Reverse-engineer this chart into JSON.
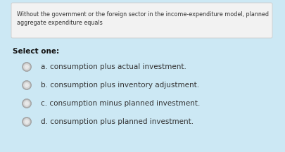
{
  "background_color": "#cce8f4",
  "question_box_bg": "#f2f2f2",
  "question_box_border": "#cccccc",
  "question_text_line1": "Without the government or the foreign sector in the income-expenditure model, planned",
  "question_text_line2": "aggregate expenditure equals",
  "question_fontsize": 5.8,
  "question_text_color": "#333333",
  "select_one_text": "Select one:",
  "select_one_fontsize": 7.5,
  "options": [
    "a. consumption plus actual investment.",
    "b. consumption plus inventory adjustment.",
    "c. consumption minus planned investment.",
    "d. consumption plus planned investment."
  ],
  "option_fontsize": 7.5,
  "option_text_color": "#333333",
  "radio_outer_color": "#b0b0b0",
  "radio_inner_color": "#d8d8d8",
  "radio_highlight_color": "#e8e8e8"
}
